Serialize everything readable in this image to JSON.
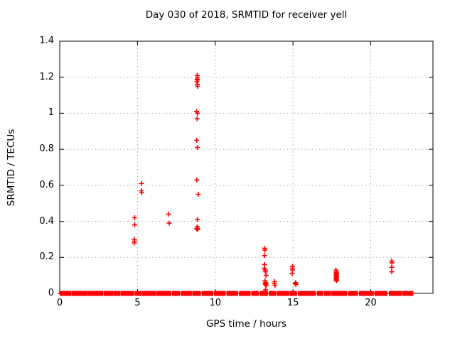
{
  "chart_data": {
    "type": "scatter",
    "title": "Day 030 of 2018, SRMTID for receiver yell",
    "xlabel": "GPS time / hours",
    "ylabel": "SRMTID / TECUs",
    "xlim": [
      0,
      24
    ],
    "ylim": [
      0,
      1.4
    ],
    "xticks": [
      0,
      5,
      10,
      15,
      20
    ],
    "xtick_labels": [
      "0",
      "5",
      "10",
      "15",
      "20"
    ],
    "yticks": [
      0,
      0.2,
      0.4,
      0.6,
      0.8,
      1.0,
      1.2,
      1.4
    ],
    "ytick_labels": [
      "0",
      "0.2",
      "0.4",
      "0.6",
      "0.8",
      "1",
      "1.2",
      "1.4"
    ],
    "grid": true,
    "legend": "none",
    "marker": "plus",
    "marker_color": "#ff0000",
    "grid_color": "#a8a8a8",
    "axis_color": "#000000",
    "points": [
      [
        4.82,
        0.42
      ],
      [
        4.82,
        0.38
      ],
      [
        4.8,
        0.3
      ],
      [
        4.81,
        0.29
      ],
      [
        4.79,
        0.28
      ],
      [
        5.26,
        0.61
      ],
      [
        5.25,
        0.57
      ],
      [
        5.27,
        0.56
      ],
      [
        7.0,
        0.44
      ],
      [
        7.04,
        0.39
      ],
      [
        8.84,
        1.21
      ],
      [
        8.86,
        1.2
      ],
      [
        8.83,
        1.19
      ],
      [
        8.86,
        1.185
      ],
      [
        8.82,
        1.175
      ],
      [
        8.85,
        1.16
      ],
      [
        8.86,
        1.15
      ],
      [
        8.8,
        1.01
      ],
      [
        8.86,
        1.0
      ],
      [
        8.83,
        0.97
      ],
      [
        8.81,
        0.85
      ],
      [
        8.85,
        0.81
      ],
      [
        8.82,
        0.63
      ],
      [
        8.91,
        0.55
      ],
      [
        8.85,
        0.41
      ],
      [
        8.84,
        0.37
      ],
      [
        8.88,
        0.36
      ],
      [
        8.81,
        0.36
      ],
      [
        8.85,
        0.355
      ],
      [
        13.18,
        0.25
      ],
      [
        13.2,
        0.24
      ],
      [
        13.17,
        0.21
      ],
      [
        13.17,
        0.16
      ],
      [
        13.15,
        0.14
      ],
      [
        13.21,
        0.13
      ],
      [
        13.24,
        0.12
      ],
      [
        13.27,
        0.1
      ],
      [
        13.2,
        0.07
      ],
      [
        13.23,
        0.06
      ],
      [
        13.27,
        0.055
      ],
      [
        13.22,
        0.05
      ],
      [
        13.28,
        0.045
      ],
      [
        13.24,
        0.02
      ],
      [
        13.82,
        0.065
      ],
      [
        13.8,
        0.055
      ],
      [
        13.84,
        0.045
      ],
      [
        14.97,
        0.15
      ],
      [
        14.96,
        0.14
      ],
      [
        14.97,
        0.13
      ],
      [
        14.95,
        0.11
      ],
      [
        15.17,
        0.06
      ],
      [
        15.19,
        0.05
      ],
      [
        15.15,
        0.055
      ],
      [
        17.76,
        0.13
      ],
      [
        17.79,
        0.12
      ],
      [
        17.77,
        0.115
      ],
      [
        17.81,
        0.11
      ],
      [
        17.79,
        0.105
      ],
      [
        17.77,
        0.1
      ],
      [
        17.81,
        0.095
      ],
      [
        17.79,
        0.09
      ],
      [
        17.77,
        0.085
      ],
      [
        17.8,
        0.08
      ],
      [
        17.78,
        0.075
      ],
      [
        17.81,
        0.07
      ],
      [
        21.35,
        0.18
      ],
      [
        21.36,
        0.17
      ],
      [
        21.35,
        0.145
      ],
      [
        21.35,
        0.12
      ]
    ],
    "baseline_value": 0,
    "baseline_marker_step": 0.04,
    "baseline_segments": [
      [
        0.03,
        0.72
      ],
      [
        0.8,
        1.72
      ],
      [
        1.8,
        2.76
      ],
      [
        2.86,
        3.42
      ],
      [
        3.5,
        3.86
      ],
      [
        3.95,
        4.76
      ],
      [
        4.86,
        5.22
      ],
      [
        5.32,
        6.16
      ],
      [
        6.26,
        7.16
      ],
      [
        7.26,
        7.72
      ],
      [
        7.82,
        8.46
      ],
      [
        8.56,
        9.06
      ],
      [
        9.16,
        9.86
      ],
      [
        9.96,
        10.66
      ],
      [
        10.76,
        11.46
      ],
      [
        11.56,
        12.26
      ],
      [
        12.36,
        12.78
      ],
      [
        12.88,
        13.36
      ],
      [
        13.48,
        13.88
      ],
      [
        14.0,
        14.72
      ],
      [
        14.82,
        15.22
      ],
      [
        15.36,
        16.46
      ],
      [
        16.58,
        16.92
      ],
      [
        17.02,
        17.38
      ],
      [
        17.48,
        18.46
      ],
      [
        18.58,
        19.16
      ],
      [
        19.28,
        20.16
      ],
      [
        20.28,
        21.06
      ],
      [
        21.2,
        21.96
      ],
      [
        22.06,
        22.72
      ]
    ]
  }
}
